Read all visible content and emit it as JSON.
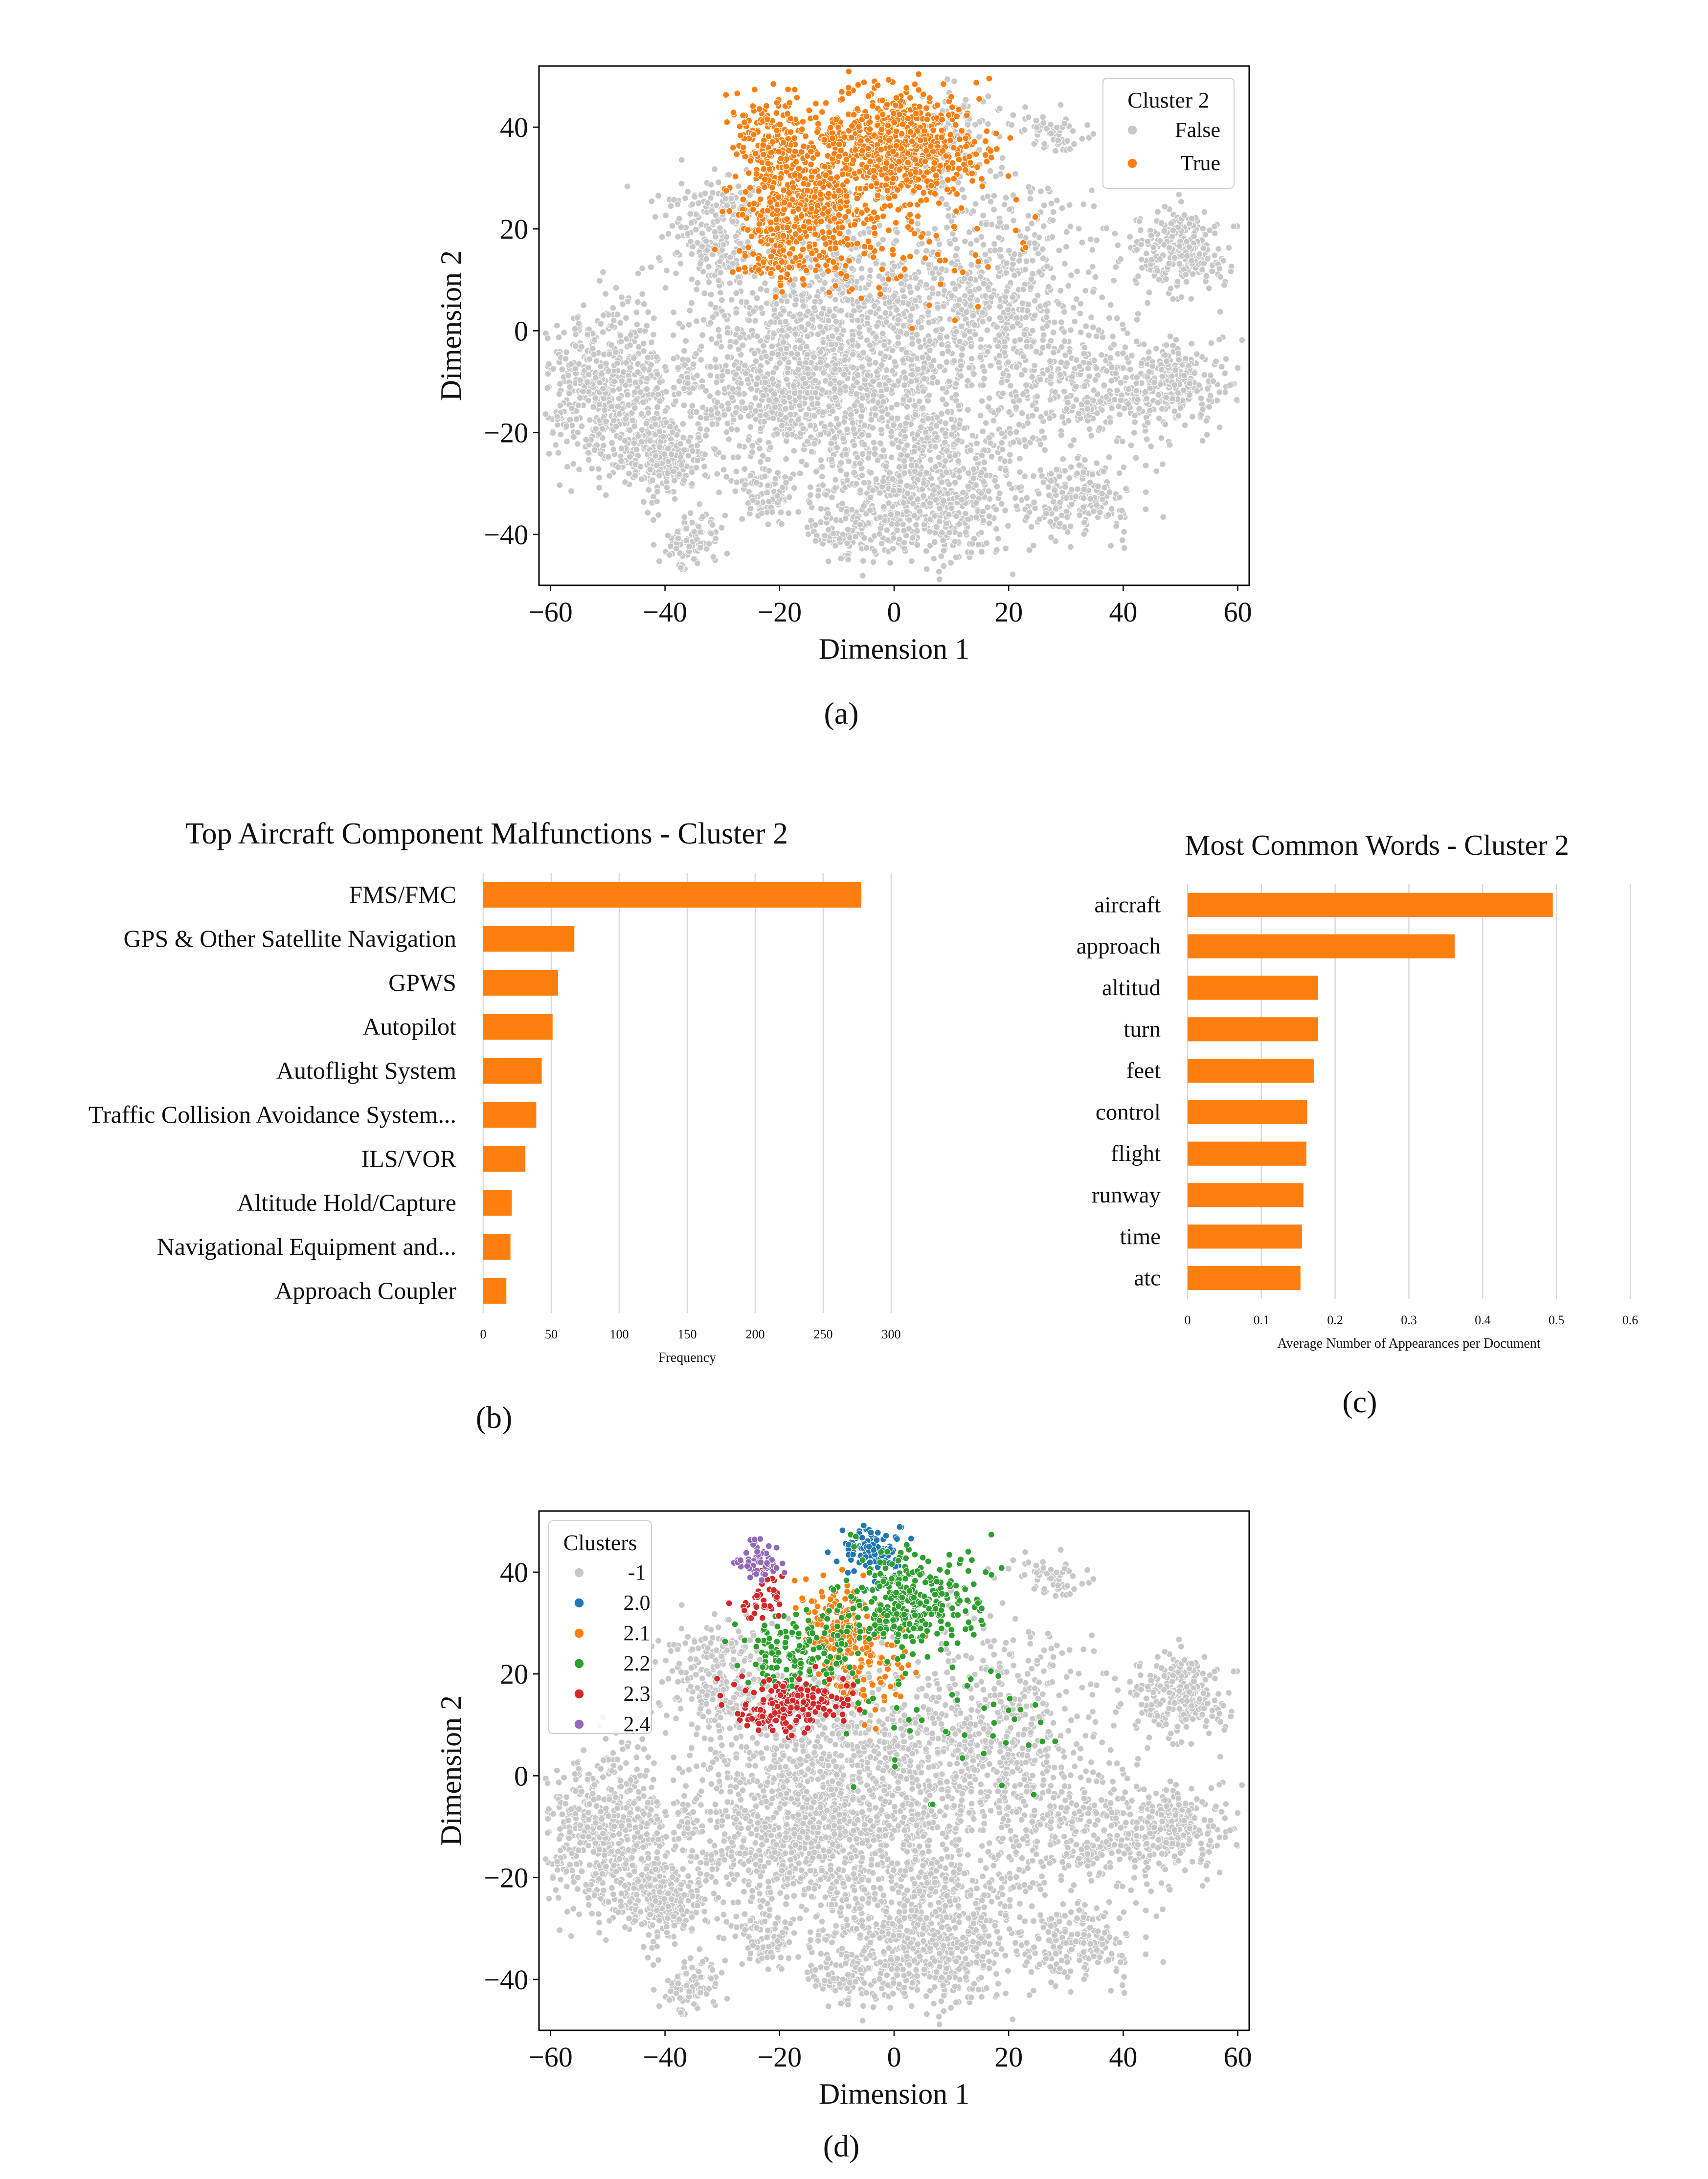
{
  "panel_labels": [
    "(a)",
    "(b)",
    "(c)",
    "(d)"
  ],
  "colors": {
    "gray": "#c8c8c8",
    "orange": "#ff7f0e",
    "blue": "#1f77b4",
    "green": "#2ca02c",
    "red": "#d62728",
    "purple": "#9467bd",
    "bar": "#ff7f0e",
    "grid": "#d9d9d9"
  },
  "chart_data": [
    {
      "type": "scatter",
      "panel": "(a)",
      "xlabel": "Dimension 1",
      "ylabel": "Dimension 2",
      "xlim": [
        -62,
        62
      ],
      "ylim": [
        -50,
        52
      ],
      "xticks": [
        -60,
        -40,
        -20,
        0,
        20,
        40,
        60
      ],
      "yticks": [
        -40,
        -20,
        0,
        20,
        40
      ],
      "tick_labels_x": [
        "−60",
        "−40",
        "−20",
        "0",
        "20",
        "40",
        "60"
      ],
      "tick_labels_y": [
        "−40",
        "−20",
        "0",
        "20",
        "40"
      ],
      "grid": false,
      "legend": {
        "title": "Cluster 2",
        "position": "top-right",
        "entries": [
          "False",
          "True"
        ]
      },
      "series": [
        {
          "name": "False",
          "color": "#c8c8c8",
          "clusters": [
            {
              "cx": -50,
              "cy": -12,
              "sx": 7,
              "sy": 8,
              "n": 650
            },
            {
              "cx": -40,
              "cy": -25,
              "sx": 4,
              "sy": 4,
              "n": 220
            },
            {
              "cx": -32,
              "cy": 20,
              "sx": 5,
              "sy": 6,
              "n": 230
            },
            {
              "cx": -35,
              "cy": -41,
              "sx": 3,
              "sy": 3,
              "n": 90
            },
            {
              "cx": -22,
              "cy": -32,
              "sx": 3,
              "sy": 3,
              "n": 80
            },
            {
              "cx": -20,
              "cy": -5,
              "sx": 9,
              "sy": 10,
              "n": 550
            },
            {
              "cx": 0,
              "cy": 0,
              "sx": 12,
              "sy": 11,
              "n": 950
            },
            {
              "cx": 5,
              "cy": -28,
              "sx": 10,
              "sy": 7,
              "n": 650
            },
            {
              "cx": 8,
              "cy": -38,
              "sx": 5,
              "sy": 4,
              "n": 140
            },
            {
              "cx": -7,
              "cy": -40,
              "sx": 4,
              "sy": 3,
              "n": 90
            },
            {
              "cx": 22,
              "cy": 5,
              "sx": 8,
              "sy": 12,
              "n": 420
            },
            {
              "cx": 33,
              "cy": -33,
              "sx": 5,
              "sy": 4,
              "n": 180
            },
            {
              "cx": 36,
              "cy": -12,
              "sx": 7,
              "sy": 5,
              "n": 250
            },
            {
              "cx": 50,
              "cy": 16,
              "sx": 4,
              "sy": 4,
              "n": 260
            },
            {
              "cx": 50,
              "cy": -10,
              "sx": 5,
              "sy": 4,
              "n": 220
            },
            {
              "cx": 28,
              "cy": 39,
              "sx": 3,
              "sy": 2,
              "n": 60
            },
            {
              "cx": 10,
              "cy": 38,
              "sx": 4,
              "sy": 6,
              "n": 110
            },
            {
              "cx": -15,
              "cy": -15,
              "sx": 10,
              "sy": 6,
              "n": 300
            }
          ]
        },
        {
          "name": "True",
          "color": "#ff7f0e",
          "clusters": [
            {
              "cx": -22,
              "cy": 38,
              "sx": 3,
              "sy": 4,
              "n": 150
            },
            {
              "cx": -18,
              "cy": 25,
              "sx": 5,
              "sy": 5,
              "n": 250
            },
            {
              "cx": -20,
              "cy": 15,
              "sx": 4,
              "sy": 3,
              "n": 120
            },
            {
              "cx": -8,
              "cy": 30,
              "sx": 6,
              "sy": 8,
              "n": 400
            },
            {
              "cx": 0,
              "cy": 38,
              "sx": 5,
              "sy": 5,
              "n": 350
            },
            {
              "cx": 8,
              "cy": 35,
              "sx": 5,
              "sy": 5,
              "n": 180
            },
            {
              "cx": 5,
              "cy": 15,
              "sx": 10,
              "sy": 6,
              "n": 60
            }
          ]
        }
      ]
    },
    {
      "type": "bar",
      "orientation": "horizontal",
      "panel": "(b)",
      "title": "Top Aircraft Component Malfunctions - Cluster 2",
      "xlabel": "Frequency",
      "xlim": [
        0,
        300
      ],
      "xticks": [
        0,
        50,
        100,
        150,
        200,
        250,
        300
      ],
      "grid": true,
      "categories": [
        "FMS/FMC",
        "GPS & Other Satellite Navigation",
        "GPWS",
        "Autopilot",
        "Autoflight System",
        "Traffic Collision Avoidance System...",
        "ILS/VOR",
        "Altitude Hold/Capture",
        "Navigational Equipment and...",
        "Approach Coupler"
      ],
      "values": [
        278,
        67,
        55,
        51,
        43,
        39,
        31,
        21,
        20,
        17
      ]
    },
    {
      "type": "bar",
      "orientation": "horizontal",
      "panel": "(c)",
      "title": "Most Common Words - Cluster 2",
      "xlabel": "Average Number  of Appearances per Document",
      "xlim": [
        0,
        0.6
      ],
      "xticks": [
        0,
        0.1,
        0.2,
        0.3,
        0.4,
        0.5,
        0.6
      ],
      "tick_labels_x": [
        "0",
        "0.1",
        "0.2",
        "0.3",
        "0.4",
        "0.5",
        "0.6"
      ],
      "grid": true,
      "categories": [
        "aircraft",
        "approach",
        "altitud",
        "turn",
        "feet",
        "control",
        "flight",
        "runway",
        "time",
        "atc"
      ],
      "values": [
        0.495,
        0.362,
        0.177,
        0.177,
        0.171,
        0.162,
        0.161,
        0.157,
        0.155,
        0.153
      ]
    },
    {
      "type": "scatter",
      "panel": "(d)",
      "xlabel": "Dimension 1",
      "ylabel": "Dimension 2",
      "xlim": [
        -62,
        62
      ],
      "ylim": [
        -50,
        52
      ],
      "xticks": [
        -60,
        -40,
        -20,
        0,
        20,
        40,
        60
      ],
      "yticks": [
        -40,
        -20,
        0,
        20,
        40
      ],
      "tick_labels_x": [
        "−60",
        "−40",
        "−20",
        "0",
        "20",
        "40",
        "60"
      ],
      "tick_labels_y": [
        "−40",
        "−20",
        "0",
        "20",
        "40"
      ],
      "grid": false,
      "legend": {
        "title": "Clusters",
        "position": "top-left",
        "entries": [
          "-1",
          "2.0",
          "2.1",
          "2.2",
          "2.3",
          "2.4"
        ]
      },
      "series": [
        {
          "name": "-1",
          "color": "#c8c8c8",
          "clusters": [
            {
              "cx": -50,
              "cy": -12,
              "sx": 7,
              "sy": 8,
              "n": 650
            },
            {
              "cx": -40,
              "cy": -25,
              "sx": 4,
              "sy": 4,
              "n": 220
            },
            {
              "cx": -32,
              "cy": 20,
              "sx": 5,
              "sy": 6,
              "n": 230
            },
            {
              "cx": -35,
              "cy": -41,
              "sx": 3,
              "sy": 3,
              "n": 90
            },
            {
              "cx": -22,
              "cy": -32,
              "sx": 3,
              "sy": 3,
              "n": 80
            },
            {
              "cx": -20,
              "cy": -5,
              "sx": 9,
              "sy": 10,
              "n": 550
            },
            {
              "cx": 0,
              "cy": 0,
              "sx": 12,
              "sy": 11,
              "n": 950
            },
            {
              "cx": 5,
              "cy": -28,
              "sx": 10,
              "sy": 7,
              "n": 650
            },
            {
              "cx": 8,
              "cy": -38,
              "sx": 5,
              "sy": 4,
              "n": 140
            },
            {
              "cx": -7,
              "cy": -40,
              "sx": 4,
              "sy": 3,
              "n": 90
            },
            {
              "cx": 22,
              "cy": 5,
              "sx": 8,
              "sy": 12,
              "n": 420
            },
            {
              "cx": 33,
              "cy": -33,
              "sx": 5,
              "sy": 4,
              "n": 180
            },
            {
              "cx": 36,
              "cy": -12,
              "sx": 7,
              "sy": 5,
              "n": 250
            },
            {
              "cx": 50,
              "cy": 16,
              "sx": 4,
              "sy": 4,
              "n": 260
            },
            {
              "cx": 50,
              "cy": -10,
              "sx": 5,
              "sy": 4,
              "n": 220
            },
            {
              "cx": 28,
              "cy": 39,
              "sx": 3,
              "sy": 2,
              "n": 60
            },
            {
              "cx": -15,
              "cy": -15,
              "sx": 10,
              "sy": 6,
              "n": 300
            }
          ]
        },
        {
          "name": "2.0",
          "color": "#1f77b4",
          "clusters": [
            {
              "cx": -4,
              "cy": 44,
              "sx": 2.5,
              "sy": 3,
              "n": 110
            }
          ]
        },
        {
          "name": "2.1",
          "color": "#ff7f0e",
          "clusters": [
            {
              "cx": -10,
              "cy": 30,
              "sx": 3,
              "sy": 4,
              "n": 140
            },
            {
              "cx": -5,
              "cy": 22,
              "sx": 4,
              "sy": 4,
              "n": 110
            }
          ]
        },
        {
          "name": "2.2",
          "color": "#2ca02c",
          "clusters": [
            {
              "cx": 3,
              "cy": 34,
              "sx": 6,
              "sy": 5,
              "n": 300
            },
            {
              "cx": -16,
              "cy": 24,
              "sx": 5,
              "sy": 4,
              "n": 170
            },
            {
              "cx": 10,
              "cy": 12,
              "sx": 9,
              "sy": 8,
              "n": 50
            }
          ]
        },
        {
          "name": "2.3",
          "color": "#d62728",
          "clusters": [
            {
              "cx": -18,
              "cy": 14,
              "sx": 5,
              "sy": 3,
              "n": 180
            },
            {
              "cx": -23,
              "cy": 35,
              "sx": 2,
              "sy": 2,
              "n": 40
            }
          ]
        },
        {
          "name": "2.4",
          "color": "#9467bd",
          "clusters": [
            {
              "cx": -23,
              "cy": 42,
              "sx": 2,
              "sy": 2,
              "n": 60
            }
          ]
        }
      ]
    }
  ]
}
